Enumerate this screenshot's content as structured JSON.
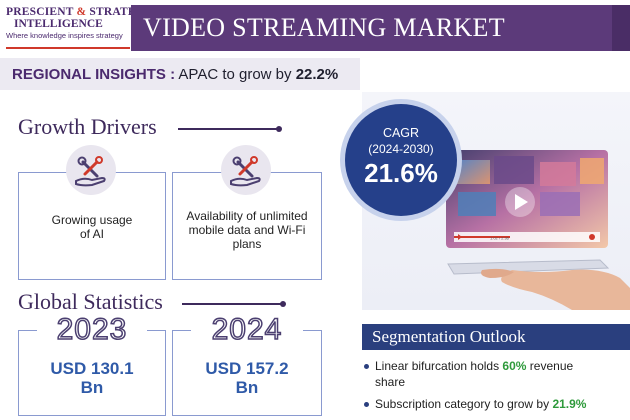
{
  "header": {
    "logo_line1_a": "PRESCIENT",
    "logo_amp": "&",
    "logo_line1_b": "STRATEGIC",
    "logo_line2": "INTELLIGENCE",
    "logo_tagline": "Where knowledge inspires strategy",
    "title": "VIDEO STREAMING MARKET"
  },
  "regional": {
    "label": "REGIONAL INSIGHTS :",
    "text": "APAC to grow by",
    "value": "22.2%"
  },
  "growth_drivers": {
    "heading": "Growth Drivers",
    "items": [
      {
        "text_l1": "Growing usage",
        "text_l2": "of AI",
        "icon": "hand-tools-icon"
      },
      {
        "text_l1": "Availability of unlimited",
        "text_l2": "mobile data and Wi-Fi",
        "text_l3": "plans",
        "icon": "hand-tools-icon"
      }
    ]
  },
  "global_statistics": {
    "heading": "Global Statistics",
    "items": [
      {
        "year": "2023",
        "value_l1": "USD 130.1",
        "value_l2": "Bn"
      },
      {
        "year": "2024",
        "value_l1": "USD 157.2",
        "value_l2": "Bn"
      }
    ]
  },
  "cagr": {
    "label": "CAGR",
    "period": "(2024-2030)",
    "value": "21.6%"
  },
  "hero_player": {
    "timecode": "1:02 / 2:36"
  },
  "segmentation": {
    "heading": "Segmentation Outlook",
    "items": [
      {
        "pre": "Linear bifurcation holds",
        "highlight": "60%",
        "post_l1": "revenue",
        "post_l2": "share"
      },
      {
        "pre": "Subscription category to grow by",
        "highlight": "21.9%"
      }
    ]
  },
  "colors": {
    "brand_purple": "#5c3a7a",
    "navy": "#2a3f7e",
    "accent_red": "#d0392b",
    "stat_blue": "#2f5aa8",
    "highlight_green": "#2e9a3b"
  }
}
